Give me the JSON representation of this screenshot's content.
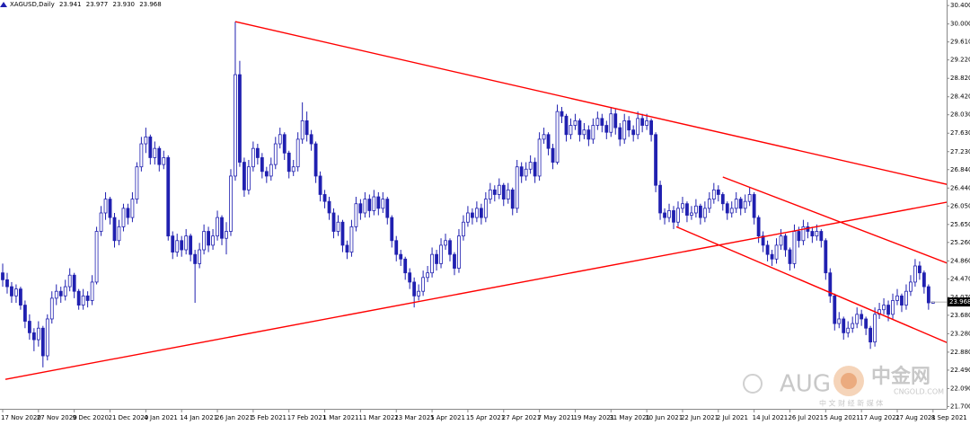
{
  "chart_data": {
    "type": "candlestick",
    "symbol": "XAGUSD,Daily",
    "last_bar_labels": [
      "23.941",
      "23.977",
      "23.930",
      "23.968"
    ],
    "candle_color": "#2020b0",
    "trendline_color": "#ff0000",
    "grid": false,
    "ylim": [
      21.65,
      30.52
    ],
    "yticks": [
      {
        "value": 30.4,
        "label": "30.400"
      },
      {
        "value": 30.0,
        "label": "30.000"
      },
      {
        "value": 29.61,
        "label": "29.610"
      },
      {
        "value": 29.22,
        "label": "29.220"
      },
      {
        "value": 28.82,
        "label": "28.820"
      },
      {
        "value": 28.42,
        "label": "28.420"
      },
      {
        "value": 28.03,
        "label": "28.030"
      },
      {
        "value": 27.63,
        "label": "27.630"
      },
      {
        "value": 27.23,
        "label": "27.230"
      },
      {
        "value": 26.84,
        "label": "26.840"
      },
      {
        "value": 26.44,
        "label": "26.440"
      },
      {
        "value": 26.05,
        "label": "26.050"
      },
      {
        "value": 25.65,
        "label": "25.650"
      },
      {
        "value": 25.26,
        "label": "25.260"
      },
      {
        "value": 24.86,
        "label": "24.860"
      },
      {
        "value": 24.47,
        "label": "24.470"
      },
      {
        "value": 24.07,
        "label": "24.070"
      },
      {
        "value": 23.68,
        "label": "23.680"
      },
      {
        "value": 23.28,
        "label": "23.280"
      },
      {
        "value": 22.88,
        "label": "22.880"
      },
      {
        "value": 22.49,
        "label": "22.490"
      },
      {
        "value": 22.09,
        "label": "22.090"
      },
      {
        "value": 21.7,
        "label": "21.700"
      }
    ],
    "categories": [
      "17 Nov 2020",
      null,
      null,
      null,
      null,
      null,
      null,
      null,
      "27 Nov 2020",
      null,
      null,
      null,
      null,
      null,
      null,
      null,
      "9 Dec 2020",
      null,
      null,
      null,
      null,
      null,
      null,
      null,
      "21 Dec 2020",
      null,
      null,
      null,
      null,
      null,
      null,
      null,
      "4 Jan 2021",
      null,
      null,
      null,
      null,
      null,
      null,
      null,
      "14 Jan 2021",
      null,
      null,
      null,
      null,
      null,
      null,
      null,
      "26 Jan 2021",
      null,
      null,
      null,
      null,
      null,
      null,
      null,
      "5 Feb 2021",
      null,
      null,
      null,
      null,
      null,
      null,
      null,
      "17 Feb 2021",
      null,
      null,
      null,
      null,
      null,
      null,
      null,
      "1 Mar 2021",
      null,
      null,
      null,
      null,
      null,
      null,
      null,
      "11 Mar 2021",
      null,
      null,
      null,
      null,
      null,
      null,
      null,
      "23 Mar 2021",
      null,
      null,
      null,
      null,
      null,
      null,
      null,
      "5 Apr 2021",
      null,
      null,
      null,
      null,
      null,
      null,
      null,
      "15 Apr 2021",
      null,
      null,
      null,
      null,
      null,
      null,
      null,
      "27 Apr 2021",
      null,
      null,
      null,
      null,
      null,
      null,
      null,
      "7 May 2021",
      null,
      null,
      null,
      null,
      null,
      null,
      null,
      "19 May 2021",
      null,
      null,
      null,
      null,
      null,
      null,
      null,
      "31 May 2021",
      null,
      null,
      null,
      null,
      null,
      null,
      null,
      "10 Jun 2021",
      null,
      null,
      null,
      null,
      null,
      null,
      null,
      "22 Jun 2021",
      null,
      null,
      null,
      null,
      null,
      null,
      null,
      "2 Jul 2021",
      null,
      null,
      null,
      null,
      null,
      null,
      null,
      "14 Jul 2021",
      null,
      null,
      null,
      null,
      null,
      null,
      null,
      "26 Jul 2021",
      null,
      null,
      null,
      null,
      null,
      null,
      null,
      "5 Aug 2021",
      null,
      null,
      null,
      null,
      null,
      null,
      null,
      "17 Aug 2021",
      null,
      null,
      null,
      null,
      null,
      null,
      null,
      "27 Aug 2021",
      null,
      null,
      null,
      null,
      null,
      null,
      null,
      "8 Sep 2021"
    ],
    "open": [
      24.6,
      24.45,
      24.3,
      24.1,
      24.25,
      23.9,
      23.55,
      23.3,
      23.15,
      23.4,
      22.8,
      23.6,
      24.05,
      24.2,
      24.1,
      24.3,
      24.55,
      24.2,
      23.9,
      24.1,
      24.0,
      24.4,
      25.5,
      25.9,
      26.2,
      25.8,
      25.3,
      25.6,
      26.0,
      25.8,
      26.2,
      26.9,
      27.4,
      27.55,
      27.1,
      27.3,
      26.95,
      27.1,
      25.4,
      25.05,
      25.3,
      25.1,
      25.4,
      25.0,
      24.8,
      25.1,
      25.5,
      25.2,
      25.4,
      25.8,
      25.35,
      25.5,
      26.7,
      28.9,
      27.0,
      26.4,
      26.9,
      27.3,
      27.1,
      26.8,
      26.7,
      26.95,
      27.4,
      27.6,
      27.2,
      26.8,
      26.9,
      27.5,
      27.9,
      27.6,
      27.4,
      26.7,
      26.3,
      26.15,
      25.9,
      25.5,
      25.7,
      25.2,
      25.05,
      25.6,
      26.1,
      25.9,
      26.2,
      25.95,
      26.25,
      26.0,
      26.2,
      25.8,
      25.3,
      25.0,
      24.9,
      24.6,
      24.4,
      24.1,
      24.2,
      24.5,
      24.6,
      25.0,
      24.8,
      25.2,
      25.3,
      25.0,
      24.7,
      25.4,
      25.7,
      25.9,
      25.8,
      26.0,
      25.8,
      26.2,
      26.4,
      26.3,
      26.5,
      26.2,
      26.4,
      26.0,
      26.9,
      26.7,
      26.85,
      27.0,
      26.7,
      27.5,
      27.6,
      27.3,
      27.0,
      28.1,
      28.0,
      27.6,
      27.8,
      27.9,
      27.6,
      27.7,
      27.5,
      27.8,
      27.95,
      27.8,
      27.65,
      28.05,
      27.75,
      27.5,
      27.9,
      27.7,
      27.6,
      27.95,
      27.8,
      27.9,
      27.6,
      26.5,
      25.9,
      25.8,
      25.95,
      25.7,
      26.0,
      26.1,
      25.85,
      25.9,
      26.05,
      25.8,
      26.0,
      26.2,
      26.4,
      26.3,
      26.1,
      25.9,
      26.0,
      26.2,
      26.0,
      26.15,
      26.3,
      25.8,
      25.4,
      25.2,
      25.0,
      24.9,
      25.2,
      25.4,
      25.1,
      24.8,
      25.5,
      25.3,
      25.6,
      25.5,
      25.4,
      25.5,
      25.3,
      24.6,
      24.1,
      23.5,
      23.6,
      23.3,
      23.4,
      23.5,
      23.7,
      23.6,
      23.4,
      23.1,
      23.7,
      23.8,
      23.9,
      23.7,
      24.0,
      24.1,
      23.9,
      24.2,
      24.4,
      24.75,
      24.6,
      24.3,
      23.941
    ],
    "high": [
      24.8,
      24.6,
      24.4,
      24.35,
      24.3,
      24.0,
      23.7,
      23.4,
      23.55,
      23.45,
      23.7,
      24.2,
      24.35,
      24.3,
      24.45,
      24.7,
      24.6,
      24.25,
      24.25,
      24.2,
      24.55,
      25.6,
      26.05,
      26.35,
      26.25,
      25.9,
      25.75,
      26.1,
      26.1,
      26.35,
      27.0,
      27.55,
      27.75,
      27.6,
      27.45,
      27.35,
      27.25,
      27.15,
      25.5,
      25.45,
      25.4,
      25.55,
      25.45,
      25.1,
      25.25,
      25.65,
      25.6,
      25.55,
      25.95,
      25.85,
      25.7,
      26.85,
      30.05,
      29.2,
      27.1,
      27.05,
      27.45,
      27.4,
      27.2,
      26.9,
      27.1,
      27.55,
      27.75,
      27.65,
      27.25,
      27.05,
      27.65,
      28.3,
      28.1,
      27.7,
      27.45,
      26.8,
      26.4,
      26.25,
      26.0,
      25.85,
      25.75,
      25.3,
      25.75,
      26.25,
      26.2,
      26.35,
      26.3,
      26.4,
      26.35,
      26.35,
      26.25,
      25.85,
      25.4,
      25.1,
      24.95,
      24.7,
      24.5,
      24.35,
      24.65,
      24.75,
      25.15,
      25.1,
      25.35,
      25.45,
      25.35,
      25.05,
      25.55,
      25.85,
      26.05,
      26.0,
      26.15,
      26.1,
      26.35,
      26.55,
      26.5,
      26.65,
      26.55,
      26.55,
      26.45,
      27.05,
      27.0,
      27.0,
      27.15,
      27.1,
      27.65,
      27.75,
      27.65,
      27.4,
      28.25,
      28.2,
      28.05,
      27.95,
      28.05,
      27.95,
      27.85,
      27.8,
      27.95,
      28.1,
      28.05,
      27.9,
      28.2,
      28.15,
      27.85,
      28.05,
      28.0,
      27.8,
      28.1,
      28.05,
      28.05,
      27.95,
      27.65,
      26.6,
      26.0,
      26.1,
      26.05,
      26.15,
      26.25,
      26.15,
      26.05,
      26.2,
      26.1,
      26.15,
      26.35,
      26.55,
      26.5,
      26.35,
      26.15,
      26.15,
      26.35,
      26.25,
      26.3,
      26.45,
      26.35,
      25.85,
      25.5,
      25.3,
      25.1,
      25.35,
      25.55,
      25.45,
      25.15,
      25.65,
      25.6,
      25.75,
      25.7,
      25.6,
      25.65,
      25.55,
      25.35,
      24.7,
      24.15,
      23.75,
      23.65,
      23.55,
      23.65,
      23.85,
      23.8,
      23.65,
      23.45,
      23.85,
      23.95,
      24.05,
      24.0,
      24.15,
      24.25,
      24.15,
      24.35,
      24.55,
      24.9,
      24.85,
      24.65,
      24.35,
      23.977
    ],
    "low": [
      24.3,
      24.15,
      23.95,
      23.95,
      23.8,
      23.4,
      23.15,
      22.9,
      23.0,
      22.55,
      22.7,
      23.5,
      23.9,
      23.95,
      24.0,
      24.2,
      24.05,
      23.8,
      23.8,
      23.85,
      23.9,
      24.35,
      25.4,
      25.75,
      25.65,
      25.15,
      25.2,
      25.5,
      25.65,
      25.7,
      26.1,
      26.8,
      27.2,
      26.95,
      26.95,
      26.8,
      26.85,
      25.3,
      24.9,
      24.95,
      24.95,
      25.0,
      24.85,
      23.95,
      24.7,
      25.0,
      25.05,
      25.1,
      25.3,
      25.2,
      25.0,
      25.4,
      26.6,
      26.9,
      26.25,
      26.3,
      26.8,
      26.95,
      26.65,
      26.55,
      26.6,
      26.85,
      27.3,
      27.05,
      26.65,
      26.7,
      26.8,
      27.4,
      27.45,
      27.25,
      26.55,
      26.15,
      26.0,
      25.75,
      25.35,
      25.4,
      25.05,
      24.9,
      24.95,
      25.5,
      25.75,
      25.8,
      25.8,
      25.85,
      25.85,
      25.9,
      25.65,
      25.15,
      24.85,
      24.75,
      24.45,
      24.25,
      23.85,
      24.0,
      24.1,
      24.4,
      24.5,
      24.65,
      24.7,
      25.1,
      24.85,
      24.55,
      24.6,
      25.3,
      25.6,
      25.65,
      25.7,
      25.65,
      25.7,
      26.1,
      26.15,
      26.2,
      26.05,
      26.1,
      25.85,
      25.9,
      26.55,
      26.6,
      26.75,
      26.55,
      26.6,
      27.4,
      27.15,
      26.85,
      26.95,
      27.85,
      27.45,
      27.5,
      27.7,
      27.45,
      27.5,
      27.35,
      27.4,
      27.7,
      27.65,
      27.5,
      27.55,
      27.6,
      27.35,
      27.4,
      27.55,
      27.45,
      27.5,
      27.65,
      27.7,
      27.45,
      26.35,
      25.75,
      25.65,
      25.7,
      25.55,
      25.6,
      25.9,
      25.7,
      25.75,
      25.8,
      25.65,
      25.7,
      25.9,
      26.1,
      26.15,
      25.95,
      25.75,
      25.8,
      25.9,
      25.85,
      25.9,
      26.05,
      25.65,
      25.25,
      25.05,
      24.85,
      24.75,
      24.8,
      25.1,
      24.95,
      24.65,
      24.7,
      25.15,
      25.2,
      25.35,
      25.25,
      25.3,
      25.15,
      24.45,
      23.95,
      23.35,
      23.4,
      23.15,
      23.2,
      23.3,
      23.4,
      23.45,
      23.25,
      22.95,
      23.0,
      23.6,
      23.7,
      23.55,
      23.6,
      23.9,
      23.75,
      23.8,
      24.1,
      24.3,
      24.45,
      24.15,
      23.8,
      23.93
    ],
    "close": [
      24.45,
      24.3,
      24.1,
      24.25,
      23.9,
      23.55,
      23.3,
      23.15,
      23.4,
      22.8,
      23.6,
      24.05,
      24.2,
      24.1,
      24.3,
      24.55,
      24.2,
      23.9,
      24.1,
      24.0,
      24.4,
      25.5,
      25.9,
      26.2,
      25.8,
      25.3,
      25.6,
      26.0,
      25.8,
      26.2,
      26.9,
      27.4,
      27.55,
      27.1,
      27.3,
      26.95,
      27.1,
      25.4,
      25.05,
      25.3,
      25.1,
      25.4,
      25.0,
      24.8,
      25.1,
      25.5,
      25.2,
      25.4,
      25.8,
      25.35,
      25.5,
      26.7,
      28.9,
      27.0,
      26.4,
      26.9,
      27.3,
      27.1,
      26.8,
      26.7,
      26.95,
      27.4,
      27.6,
      27.2,
      26.8,
      26.9,
      27.5,
      27.9,
      27.6,
      27.4,
      26.7,
      26.3,
      26.15,
      25.9,
      25.5,
      25.7,
      25.2,
      25.05,
      25.6,
      26.1,
      25.9,
      26.2,
      25.95,
      26.25,
      26.0,
      26.2,
      25.8,
      25.3,
      25.0,
      24.9,
      24.6,
      24.4,
      24.1,
      24.2,
      24.5,
      24.6,
      25.0,
      24.8,
      25.2,
      25.3,
      25.0,
      24.7,
      25.4,
      25.7,
      25.9,
      25.8,
      26.0,
      25.8,
      26.2,
      26.4,
      26.3,
      26.5,
      26.2,
      26.4,
      26.0,
      26.9,
      26.7,
      26.85,
      27.0,
      26.7,
      27.5,
      27.6,
      27.3,
      27.0,
      28.1,
      28.0,
      27.6,
      27.8,
      27.9,
      27.6,
      27.7,
      27.5,
      27.8,
      27.95,
      27.8,
      27.65,
      28.05,
      27.75,
      27.5,
      27.9,
      27.7,
      27.6,
      27.95,
      27.8,
      27.9,
      27.6,
      26.5,
      25.9,
      25.8,
      25.95,
      25.7,
      26.0,
      26.1,
      25.85,
      25.9,
      26.05,
      25.8,
      26.0,
      26.2,
      26.4,
      26.3,
      26.1,
      25.9,
      26.0,
      26.2,
      26.0,
      26.15,
      26.3,
      25.8,
      25.4,
      25.2,
      25.0,
      24.9,
      25.2,
      25.4,
      25.1,
      24.8,
      25.5,
      25.3,
      25.6,
      25.5,
      25.4,
      25.5,
      25.3,
      24.6,
      24.1,
      23.5,
      23.6,
      23.3,
      23.4,
      23.5,
      23.7,
      23.6,
      23.4,
      23.1,
      23.7,
      23.8,
      23.9,
      23.7,
      24.0,
      24.1,
      23.9,
      24.2,
      24.4,
      24.75,
      24.6,
      24.3,
      23.95,
      23.968
    ],
    "trendlines": [
      {
        "start": [
          52,
          30.05
        ],
        "end": [
          212,
          26.5
        ]
      },
      {
        "start": [
          0.6,
          22.29
        ],
        "end": [
          212,
          26.15
        ]
      },
      {
        "start": [
          161,
          26.68
        ],
        "end": [
          212,
          24.78
        ]
      },
      {
        "start": [
          150.6,
          25.6
        ],
        "end": [
          212,
          23.05
        ]
      }
    ],
    "watermark": {
      "brand": "AUG",
      "site": "中金网",
      "url": "CNGOLD.COM",
      "tagline": "中 文 财 经 新 媒 体"
    }
  }
}
